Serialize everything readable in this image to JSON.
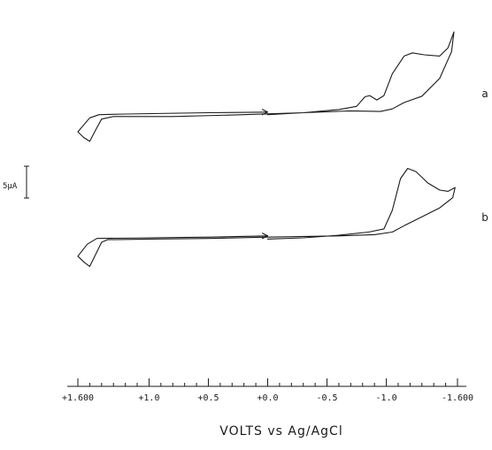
{
  "chart_data": {
    "type": "line",
    "xlabel": "VOLTS vs Ag/AgCl",
    "xlim": [
      1.6,
      -1.6
    ],
    "x_reversed": true,
    "ticks": [
      {
        "value": 1.6,
        "label": "+1.600"
      },
      {
        "value": 1.0,
        "label": "+1.0"
      },
      {
        "value": 0.5,
        "label": "+0.5"
      },
      {
        "value": 0.0,
        "label": "+0.0"
      },
      {
        "value": -0.5,
        "label": "-0.5"
      },
      {
        "value": -1.0,
        "label": "-1.0"
      },
      {
        "value": -1.6,
        "label": "-1.600"
      }
    ],
    "minor_tick_step": 0.1,
    "scale_bar": {
      "label": "5µA",
      "current_uA": 5
    },
    "units": {
      "y": "µA"
    },
    "traces": [
      {
        "name": "a",
        "start_arrow_at_V": 0.0,
        "forward": [
          [
            0.0,
            0.6
          ],
          [
            -0.3,
            0.9
          ],
          [
            -0.6,
            1.4
          ],
          [
            -0.75,
            1.9
          ],
          [
            -0.82,
            3.4
          ],
          [
            -0.86,
            3.6
          ],
          [
            -0.92,
            2.9
          ],
          [
            -0.98,
            3.6
          ],
          [
            -1.05,
            7.0
          ],
          [
            -1.15,
            9.8
          ],
          [
            -1.22,
            10.3
          ],
          [
            -1.32,
            10.0
          ],
          [
            -1.45,
            9.8
          ],
          [
            -1.52,
            11.1
          ],
          [
            -1.57,
            13.6
          ]
        ],
        "reverse": [
          [
            -1.57,
            13.6
          ],
          [
            -1.55,
            10.5
          ],
          [
            -1.45,
            6.3
          ],
          [
            -1.3,
            3.5
          ],
          [
            -1.15,
            2.5
          ],
          [
            -1.05,
            1.5
          ],
          [
            -0.95,
            1.1
          ],
          [
            -0.7,
            1.2
          ],
          [
            -0.3,
            0.9
          ],
          [
            0.2,
            0.6
          ],
          [
            0.8,
            0.3
          ],
          [
            1.3,
            0.3
          ],
          [
            1.4,
            -0.1
          ],
          [
            1.45,
            -1.8
          ],
          [
            1.5,
            -3.6
          ],
          [
            1.55,
            -3.0
          ],
          [
            1.6,
            -2.1
          ],
          [
            1.5,
            0.1
          ],
          [
            1.42,
            0.6
          ],
          [
            1.2,
            0.7
          ],
          [
            0.5,
            0.9
          ],
          [
            0.0,
            1.0
          ]
        ]
      },
      {
        "name": "b",
        "start_arrow_at_V": 0.0,
        "forward": [
          [
            0.0,
            0.5
          ],
          [
            -0.3,
            0.7
          ],
          [
            -0.6,
            1.1
          ],
          [
            -0.85,
            1.6
          ],
          [
            -0.98,
            2.1
          ],
          [
            -1.05,
            5.0
          ],
          [
            -1.12,
            10.0
          ],
          [
            -1.18,
            11.6
          ],
          [
            -1.25,
            11.1
          ],
          [
            -1.35,
            9.3
          ],
          [
            -1.45,
            8.2
          ],
          [
            -1.52,
            8.0
          ],
          [
            -1.58,
            8.6
          ]
        ],
        "reverse": [
          [
            -1.58,
            8.6
          ],
          [
            -1.56,
            7.0
          ],
          [
            -1.45,
            5.4
          ],
          [
            -1.3,
            4.0
          ],
          [
            -1.15,
            2.6
          ],
          [
            -1.05,
            1.6
          ],
          [
            -0.9,
            1.2
          ],
          [
            -0.6,
            1.0
          ],
          [
            0.0,
            0.8
          ],
          [
            0.5,
            0.6
          ],
          [
            1.0,
            0.5
          ],
          [
            1.35,
            0.4
          ],
          [
            1.4,
            0.0
          ],
          [
            1.45,
            -1.9
          ],
          [
            1.5,
            -3.8
          ],
          [
            1.55,
            -3.1
          ],
          [
            1.6,
            -2.2
          ],
          [
            1.52,
            -0.3
          ],
          [
            1.44,
            0.6
          ],
          [
            1.0,
            0.7
          ],
          [
            0.5,
            0.8
          ],
          [
            0.0,
            1.0
          ]
        ]
      }
    ]
  }
}
